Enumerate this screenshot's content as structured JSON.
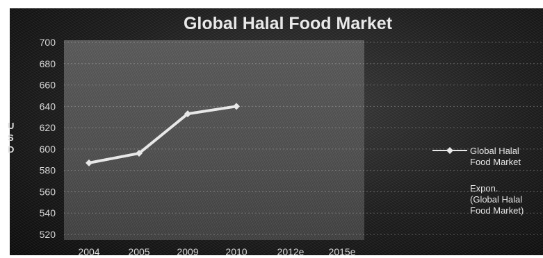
{
  "chart_data": {
    "type": "line",
    "title": "Global Halal Food Market",
    "ylabel": "USD",
    "ylabel_letters": [
      "U",
      "S",
      "D"
    ],
    "xlabel": "",
    "categories": [
      "2004",
      "2005",
      "2009",
      "2010",
      "2012e",
      "2015e"
    ],
    "yticks": [
      520,
      540,
      560,
      580,
      600,
      620,
      640,
      660,
      680,
      700
    ],
    "ylim": [
      520,
      700
    ],
    "grid": true,
    "legend_position": "right",
    "series": [
      {
        "name": "Global Halal Food Market",
        "name_lines": [
          "Global Halal",
          "Food Market"
        ],
        "values": [
          587,
          596,
          633,
          640,
          null,
          null
        ],
        "color": "#e8e8e8",
        "marker": "diamond"
      },
      {
        "name": "Expon. (Global Halal Food Market)",
        "name_lines": [
          "Expon.",
          "(Global Halal",
          "Food Market)"
        ],
        "kind": "trendline"
      }
    ]
  },
  "colors": {
    "background": "#1e1e1e",
    "plot_area": "#4d4d4d",
    "line": "#e8e8e8",
    "text": "#dddddd"
  }
}
